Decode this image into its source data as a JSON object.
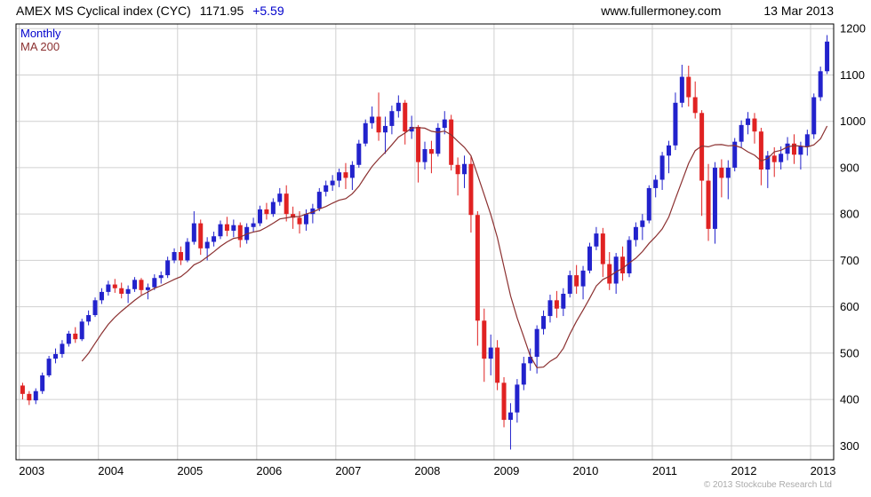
{
  "header": {
    "instrument": "AMEX MS Cyclical index (CYC)",
    "last_price": "1171.95",
    "change": "+5.59",
    "site": "www.fullermoney.com",
    "date": "13 Mar 2013"
  },
  "legend": {
    "timeframe_label": "Monthly",
    "ma_label": "MA 200"
  },
  "footer": {
    "copyright": "© 2013 Stockcube Research Ltd"
  },
  "chart_data": {
    "type": "candlestick",
    "title": "AMEX MS Cyclical index (CYC)",
    "timeframe": "Monthly",
    "x_start": "2003-01",
    "x_end": "2013-03",
    "months_per_candle": 1,
    "x_ticks": [
      2003,
      2004,
      2005,
      2006,
      2007,
      2008,
      2009,
      2010,
      2011,
      2012,
      2013
    ],
    "y_ticks": [
      300,
      400,
      500,
      600,
      700,
      800,
      900,
      1000,
      1100,
      1200
    ],
    "ylim": [
      270,
      1210
    ],
    "grid": true,
    "legend_position": "top-left",
    "colors": {
      "up": "#2222cc",
      "down": "#e02222",
      "ma": "#8b3030",
      "grid": "#d0d0d0",
      "border": "#000000",
      "legend_series": "#0000cc",
      "header_change": "#0000cc"
    },
    "overlays": [
      {
        "name": "MA 200",
        "type": "sma",
        "window": 10,
        "color": "#8b3030"
      }
    ],
    "candles_format": [
      "open",
      "high",
      "low",
      "close"
    ],
    "candles": [
      [
        430,
        436,
        400,
        412
      ],
      [
        412,
        418,
        388,
        398
      ],
      [
        398,
        424,
        390,
        418
      ],
      [
        418,
        458,
        412,
        452
      ],
      [
        452,
        494,
        448,
        488
      ],
      [
        488,
        510,
        478,
        498
      ],
      [
        498,
        528,
        490,
        520
      ],
      [
        520,
        548,
        514,
        542
      ],
      [
        542,
        556,
        522,
        530
      ],
      [
        530,
        574,
        526,
        568
      ],
      [
        568,
        592,
        560,
        582
      ],
      [
        582,
        620,
        578,
        614
      ],
      [
        614,
        640,
        606,
        632
      ],
      [
        632,
        656,
        624,
        648
      ],
      [
        648,
        660,
        630,
        640
      ],
      [
        640,
        652,
        618,
        628
      ],
      [
        628,
        646,
        608,
        638
      ],
      [
        638,
        664,
        632,
        658
      ],
      [
        658,
        662,
        626,
        636
      ],
      [
        636,
        650,
        616,
        642
      ],
      [
        642,
        670,
        636,
        662
      ],
      [
        662,
        676,
        650,
        668
      ],
      [
        668,
        708,
        662,
        700
      ],
      [
        700,
        726,
        694,
        718
      ],
      [
        718,
        730,
        690,
        700
      ],
      [
        700,
        748,
        696,
        740
      ],
      [
        740,
        806,
        734,
        780
      ],
      [
        780,
        788,
        712,
        726
      ],
      [
        726,
        750,
        700,
        740
      ],
      [
        740,
        762,
        730,
        752
      ],
      [
        752,
        786,
        746,
        778
      ],
      [
        778,
        794,
        752,
        764
      ],
      [
        764,
        788,
        750,
        776
      ],
      [
        776,
        782,
        728,
        744
      ],
      [
        744,
        780,
        736,
        772
      ],
      [
        772,
        792,
        762,
        780
      ],
      [
        780,
        818,
        774,
        810
      ],
      [
        810,
        824,
        788,
        800
      ],
      [
        800,
        834,
        794,
        826
      ],
      [
        826,
        856,
        818,
        844
      ],
      [
        844,
        862,
        784,
        800
      ],
      [
        800,
        816,
        768,
        792
      ],
      [
        792,
        806,
        758,
        778
      ],
      [
        778,
        810,
        764,
        800
      ],
      [
        800,
        822,
        780,
        812
      ],
      [
        812,
        856,
        806,
        848
      ],
      [
        848,
        872,
        838,
        862
      ],
      [
        862,
        884,
        850,
        872
      ],
      [
        872,
        898,
        858,
        890
      ],
      [
        890,
        910,
        854,
        878
      ],
      [
        878,
        914,
        852,
        906
      ],
      [
        906,
        960,
        900,
        952
      ],
      [
        952,
        1004,
        946,
        996
      ],
      [
        996,
        1032,
        984,
        1010
      ],
      [
        1010,
        1062,
        958,
        976
      ],
      [
        976,
        1010,
        930,
        990
      ],
      [
        990,
        1034,
        972,
        1022
      ],
      [
        1022,
        1056,
        1008,
        1040
      ],
      [
        1040,
        1046,
        950,
        978
      ],
      [
        978,
        1012,
        962,
        988
      ],
      [
        988,
        992,
        868,
        912
      ],
      [
        912,
        956,
        896,
        940
      ],
      [
        940,
        958,
        888,
        930
      ],
      [
        930,
        996,
        924,
        986
      ],
      [
        986,
        1022,
        972,
        1004
      ],
      [
        1004,
        1014,
        894,
        906
      ],
      [
        906,
        922,
        840,
        886
      ],
      [
        886,
        926,
        856,
        908
      ],
      [
        908,
        924,
        760,
        798
      ],
      [
        798,
        806,
        516,
        570
      ],
      [
        570,
        596,
        438,
        488
      ],
      [
        488,
        540,
        452,
        512
      ],
      [
        512,
        528,
        420,
        436
      ],
      [
        436,
        448,
        340,
        356
      ],
      [
        356,
        392,
        292,
        372
      ],
      [
        372,
        444,
        350,
        432
      ],
      [
        432,
        492,
        420,
        478
      ],
      [
        478,
        510,
        462,
        492
      ],
      [
        492,
        560,
        456,
        552
      ],
      [
        552,
        592,
        540,
        580
      ],
      [
        580,
        626,
        566,
        614
      ],
      [
        614,
        634,
        576,
        596
      ],
      [
        596,
        640,
        580,
        628
      ],
      [
        628,
        678,
        620,
        668
      ],
      [
        668,
        690,
        628,
        644
      ],
      [
        644,
        688,
        616,
        678
      ],
      [
        678,
        738,
        672,
        730
      ],
      [
        730,
        772,
        722,
        758
      ],
      [
        758,
        770,
        664,
        692
      ],
      [
        692,
        718,
        636,
        650
      ],
      [
        650,
        716,
        628,
        708
      ],
      [
        708,
        730,
        656,
        672
      ],
      [
        672,
        752,
        664,
        744
      ],
      [
        744,
        782,
        730,
        772
      ],
      [
        772,
        800,
        744,
        786
      ],
      [
        786,
        862,
        780,
        856
      ],
      [
        856,
        884,
        836,
        874
      ],
      [
        874,
        934,
        852,
        926
      ],
      [
        926,
        958,
        888,
        948
      ],
      [
        948,
        1062,
        938,
        1040
      ],
      [
        1040,
        1122,
        1030,
        1096
      ],
      [
        1096,
        1120,
        1032,
        1052
      ],
      [
        1052,
        1086,
        1006,
        1018
      ],
      [
        1018,
        1024,
        796,
        872
      ],
      [
        872,
        908,
        742,
        768
      ],
      [
        768,
        912,
        736,
        900
      ],
      [
        900,
        918,
        836,
        878
      ],
      [
        878,
        916,
        832,
        900
      ],
      [
        900,
        964,
        892,
        956
      ],
      [
        956,
        1002,
        944,
        992
      ],
      [
        992,
        1020,
        972,
        1006
      ],
      [
        1006,
        1018,
        952,
        978
      ],
      [
        978,
        986,
        862,
        896
      ],
      [
        896,
        936,
        856,
        926
      ],
      [
        926,
        944,
        880,
        912
      ],
      [
        912,
        946,
        896,
        930
      ],
      [
        930,
        966,
        916,
        952
      ],
      [
        952,
        972,
        908,
        928
      ],
      [
        928,
        956,
        896,
        946
      ],
      [
        946,
        982,
        926,
        972
      ],
      [
        972,
        1060,
        962,
        1052
      ],
      [
        1052,
        1118,
        1044,
        1108
      ],
      [
        1108,
        1186,
        1102,
        1172
      ]
    ]
  }
}
